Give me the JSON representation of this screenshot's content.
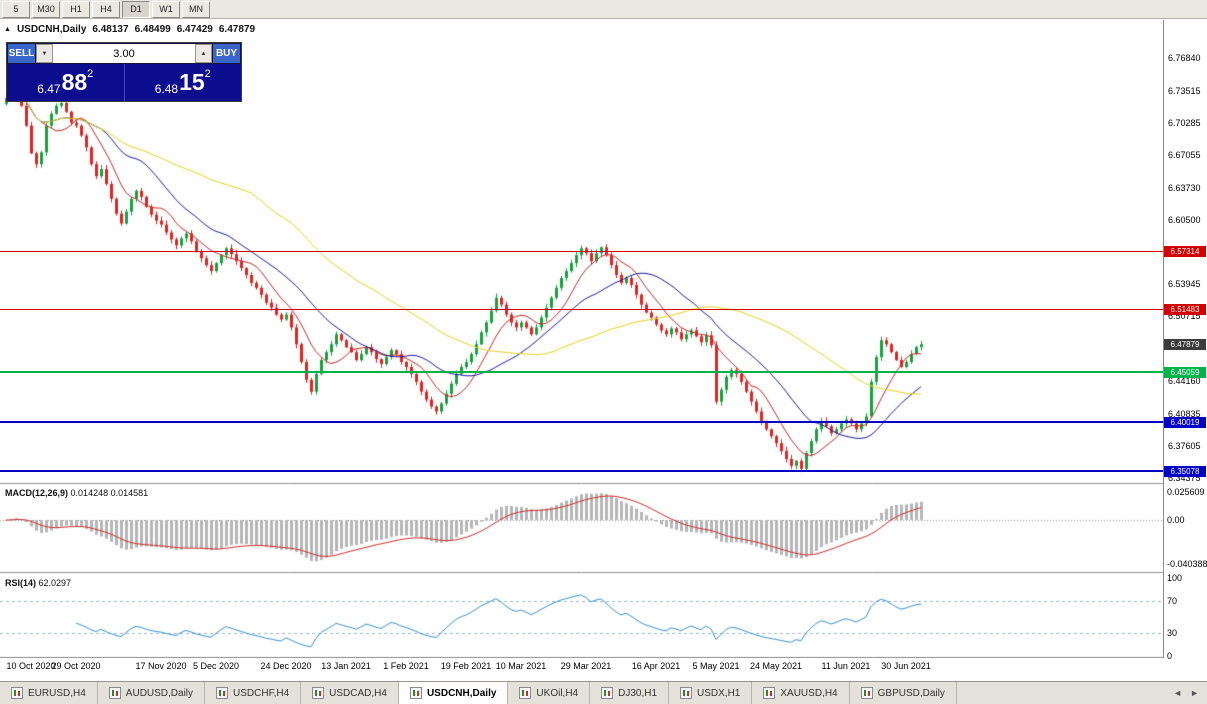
{
  "toolbar": {
    "periods": [
      {
        "label": "5",
        "active": false
      },
      {
        "label": "M30",
        "active": false
      },
      {
        "label": "H1",
        "active": false
      },
      {
        "label": "H4",
        "active": false
      },
      {
        "label": "D1",
        "active": true
      },
      {
        "label": "W1",
        "active": false
      },
      {
        "label": "MN",
        "active": false
      }
    ]
  },
  "chart_header": {
    "collapse_icon": "▲",
    "symbol": "USDCNH,Daily",
    "open": "6.48137",
    "high": "6.48499",
    "low": "6.47429",
    "close": "6.47879"
  },
  "trade_panel": {
    "sell_label": "SELL",
    "buy_label": "BUY",
    "lot_size": "3.00",
    "lot_down_icon": "▼",
    "lot_up_icon": "▲",
    "sell_price_small": "6.47",
    "sell_price_big": "88",
    "sell_price_sup": "2",
    "buy_price_small": "6.48",
    "buy_price_big": "15",
    "buy_price_sup": "2"
  },
  "price_axis": {
    "ticks": [
      "6.76840",
      "6.73515",
      "6.70285",
      "6.67055",
      "6.63730",
      "6.60500",
      "6.53945",
      "6.50715",
      "6.44160",
      "6.40835",
      "6.37605",
      "6.34375"
    ]
  },
  "levels": [
    {
      "value": "6.57314",
      "color": "#d40000",
      "weight": 1
    },
    {
      "value": "6.51483",
      "color": "#d40000",
      "weight": 1
    },
    {
      "value": "6.45059",
      "color": "#00b44a",
      "weight": 2
    },
    {
      "value": "6.40019",
      "color": "#0000c8",
      "weight": 2
    },
    {
      "value": "6.35078",
      "color": "#0000c8",
      "weight": 2
    }
  ],
  "current_price": {
    "value": "6.47879",
    "color": "#3c3c3c"
  },
  "macd_panel": {
    "name": "MACD(12,26,9)",
    "values": "0.014248 0.014581",
    "axis_labels": [
      "0.025609",
      "0.00",
      "-0.040388"
    ]
  },
  "rsi_panel": {
    "name": "RSI(14)",
    "values": "62.0297",
    "axis_labels": [
      "100",
      "70",
      "30",
      "0"
    ]
  },
  "tabbar": {
    "scroll_left_icon": "◄",
    "scroll_right_icon": "►",
    "tabs": [
      {
        "label": "EURUSD,H4",
        "active": false
      },
      {
        "label": "AUDUSD,Daily",
        "active": false
      },
      {
        "label": "USDCHF,H4",
        "active": false
      },
      {
        "label": "USDCAD,H4",
        "active": false
      },
      {
        "label": "USDCNH,Daily",
        "active": true
      },
      {
        "label": "UKOil,H4",
        "active": false
      },
      {
        "label": "DJ30,H1",
        "active": false
      },
      {
        "label": "USDX,H1",
        "active": false
      },
      {
        "label": "XAUUSD,H4",
        "active": false
      },
      {
        "label": "GBPUSD,Daily",
        "active": false
      }
    ]
  },
  "chart_data": {
    "type": "candlestick",
    "symbol": "USDCNH",
    "timeframe": "Daily",
    "y_axis": {
      "min": 6.34375,
      "max": 6.7684
    },
    "colors": {
      "candle_up": "#18a040",
      "candle_down": "#e02424",
      "ma_fast": "#cc2828",
      "ma_mid": "#1c1ca0",
      "ma_slow": "#e6d41e",
      "macd_bar": "#b6b6b6",
      "macd_signal": "#cc3030",
      "rsi_line": "#3a93d5",
      "rsi_level": "#9bb8d8"
    },
    "indicators": {
      "moving_averages": [
        {
          "period": 8,
          "series": "ma_fast"
        },
        {
          "period": 20,
          "series": "ma_mid"
        },
        {
          "period": 50,
          "series": "ma_slow"
        }
      ],
      "macd": {
        "fast": 12,
        "slow": 26,
        "signal": 9
      },
      "rsi": {
        "period": 14,
        "levels": [
          70,
          30
        ]
      }
    },
    "dates": [
      {
        "label": "10 Oct 2020",
        "index": 5
      },
      {
        "label": "29 Oct 2020",
        "index": 14
      },
      {
        "label": "17 Nov 2020",
        "index": 31
      },
      {
        "label": "5 Dec 2020",
        "index": 42
      },
      {
        "label": "24 Dec 2020",
        "index": 56
      },
      {
        "label": "13 Jan 2021",
        "index": 68
      },
      {
        "label": "1 Feb 2021",
        "index": 80
      },
      {
        "label": "19 Feb 2021",
        "index": 92
      },
      {
        "label": "10 Mar 2021",
        "index": 103
      },
      {
        "label": "29 Mar 2021",
        "index": 116
      },
      {
        "label": "16 Apr 2021",
        "index": 130
      },
      {
        "label": "5 May 2021",
        "index": 142
      },
      {
        "label": "24 May 2021",
        "index": 154
      },
      {
        "label": "11 Jun 2021",
        "index": 168
      },
      {
        "label": "30 Jun 2021",
        "index": 180
      }
    ],
    "closes": [
      6.728,
      6.736,
      6.742,
      6.72,
      6.7,
      6.672,
      6.661,
      6.673,
      6.7,
      6.712,
      6.72,
      6.723,
      6.714,
      6.703,
      6.7,
      6.69,
      6.678,
      6.661,
      6.649,
      6.656,
      6.641,
      6.626,
      6.611,
      6.601,
      6.613,
      6.626,
      6.634,
      6.628,
      6.618,
      6.61,
      6.604,
      6.6,
      6.592,
      6.585,
      6.579,
      6.586,
      6.591,
      6.583,
      6.573,
      6.566,
      6.559,
      6.553,
      6.561,
      6.569,
      6.576,
      6.57,
      6.563,
      6.556,
      6.549,
      6.541,
      6.536,
      6.529,
      6.521,
      6.516,
      6.509,
      6.504,
      6.509,
      6.496,
      6.479,
      6.461,
      6.443,
      6.431,
      6.449,
      6.463,
      6.471,
      6.479,
      6.489,
      6.483,
      6.476,
      6.471,
      6.463,
      6.469,
      6.476,
      6.471,
      6.464,
      6.459,
      6.466,
      6.473,
      6.469,
      6.461,
      6.456,
      6.449,
      6.441,
      6.431,
      6.423,
      6.416,
      6.411,
      6.419,
      6.429,
      6.439,
      6.449,
      6.456,
      6.461,
      6.469,
      6.479,
      6.491,
      6.501,
      6.513,
      6.526,
      6.519,
      6.509,
      6.501,
      6.496,
      6.501,
      6.496,
      6.489,
      6.496,
      6.506,
      6.516,
      6.526,
      6.536,
      6.546,
      6.553,
      6.561,
      6.569,
      6.576,
      6.571,
      6.563,
      6.571,
      6.577,
      6.569,
      6.559,
      6.549,
      6.541,
      6.546,
      6.539,
      6.529,
      6.519,
      6.511,
      6.506,
      6.499,
      6.493,
      6.489,
      6.495,
      6.491,
      6.484,
      6.489,
      6.493,
      6.487,
      6.481,
      6.488,
      6.478,
      6.421,
      6.433,
      6.446,
      6.453,
      6.449,
      6.441,
      6.431,
      6.421,
      6.411,
      6.401,
      6.393,
      6.386,
      6.379,
      6.371,
      6.363,
      6.356,
      6.361,
      6.353,
      6.369,
      6.381,
      6.393,
      6.401,
      6.396,
      6.389,
      6.393,
      6.399,
      6.403,
      6.399,
      6.393,
      6.399,
      6.406,
      6.441,
      6.466,
      6.483,
      6.479,
      6.471,
      6.463,
      6.456,
      6.461,
      6.469,
      6.476,
      6.479
    ]
  }
}
